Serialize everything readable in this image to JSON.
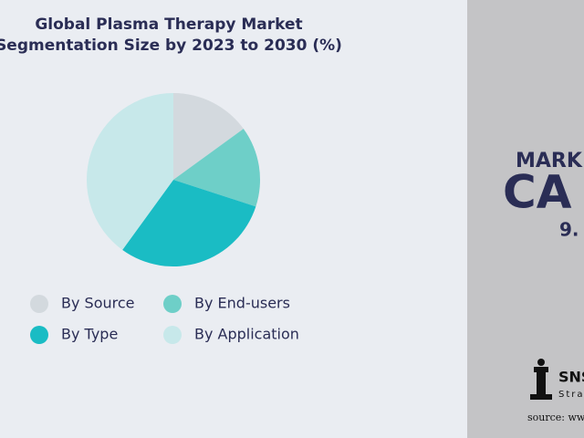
{
  "chart_data": {
    "type": "pie",
    "title": [
      "Global Plasma Therapy Market",
      "Segmentation Size by 2023 to 2030 (%)"
    ],
    "categories": [
      "By Source",
      "By End-users",
      "By Type",
      "By Application"
    ],
    "values": [
      15,
      15,
      30,
      40
    ],
    "colors": [
      "#d3d9de",
      "#6ecfc8",
      "#1abcc4",
      "#c7e8ea"
    ]
  },
  "side_panel": {
    "line1": "MARK",
    "line2": "CA",
    "line3": "9.",
    "logo": "SNS",
    "logo_sub": "Stra",
    "source": "source: www"
  }
}
